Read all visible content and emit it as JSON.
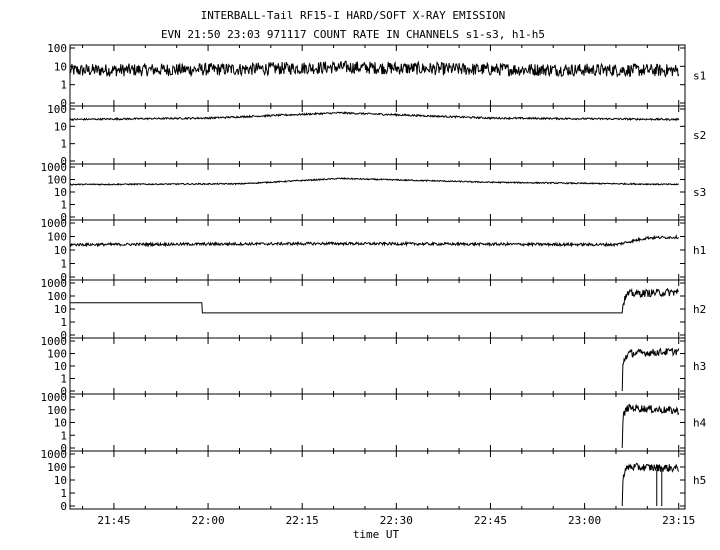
{
  "title_line1": "INTERBALL-Tail RF15-I HARD/SOFT X-RAY EMISSION",
  "title_line2": "EVN 21:50 23:03 971117  COUNT RATE IN CHANNELS s1-s3, h1-h5",
  "colors": {
    "background": "#ffffff",
    "foreground": "#000000"
  },
  "chart_data": {
    "type": "line",
    "xlabel": "time UT",
    "x_ticks": [
      "21:45",
      "22:00",
      "22:15",
      "22:30",
      "22:45",
      "23:00",
      "23:15"
    ],
    "x_tick_minutes": [
      1305,
      1320,
      1335,
      1350,
      1365,
      1380,
      1395
    ],
    "x_range_minutes": [
      1298,
      1396
    ],
    "y_scale": "log (with 0 at bottom)",
    "grid": false,
    "panels": [
      {
        "name": "s1",
        "y_ticks": [
          "100",
          "10",
          "1",
          "0"
        ],
        "ylim": [
          0,
          100
        ],
        "series": [
          {
            "x": [
              "21:38",
              "22:05",
              "22:21",
              "22:40",
              "23:15"
            ],
            "y": [
              6,
              7,
              9,
              7,
              6
            ],
            "noise": "high"
          }
        ]
      },
      {
        "name": "s2",
        "y_ticks": [
          "100",
          "10",
          "1",
          "0"
        ],
        "ylim": [
          0,
          100
        ],
        "series": [
          {
            "x": [
              "21:38",
              "22:00",
              "22:21",
              "22:45",
              "23:15"
            ],
            "y": [
              25,
              30,
              60,
              30,
              25
            ],
            "noise": "low"
          }
        ]
      },
      {
        "name": "s3",
        "y_ticks": [
          "1000",
          "100",
          "10",
          "1",
          "0"
        ],
        "ylim": [
          0,
          1000
        ],
        "series": [
          {
            "x": [
              "21:38",
              "22:05",
              "22:21",
              "22:45",
              "23:15"
            ],
            "y": [
              40,
              45,
              120,
              60,
              40
            ],
            "noise": "low"
          }
        ]
      },
      {
        "name": "h1",
        "y_ticks": [
          "1000",
          "100",
          "10",
          "1",
          "0"
        ],
        "ylim": [
          0,
          1000
        ],
        "series": [
          {
            "x": [
              "21:38",
              "22:20",
              "23:05",
              "23:07",
              "23:10",
              "23:15"
            ],
            "y": [
              25,
              30,
              25,
              40,
              80,
              90
            ],
            "noise": "med"
          }
        ]
      },
      {
        "name": "h2",
        "y_ticks": [
          "1000",
          "100",
          "10",
          "1",
          "0"
        ],
        "ylim": [
          0,
          1000
        ],
        "series": [
          {
            "x": [
              "21:38",
              "21:59",
              "21:59",
              "23:06",
              "23:06",
              "23:07",
              "23:15"
            ],
            "y": [
              30,
              30,
              5,
              5,
              0,
              150,
              200
            ],
            "noise": "step-burst"
          }
        ]
      },
      {
        "name": "h3",
        "y_ticks": [
          "1000",
          "100",
          "10",
          "1",
          "0"
        ],
        "ylim": [
          0,
          1000
        ],
        "series": [
          {
            "x": [
              "23:06",
              "23:07",
              "23:15"
            ],
            "y": [
              0,
              100,
              150
            ],
            "noise": "burst"
          }
        ]
      },
      {
        "name": "h4",
        "y_ticks": [
          "1000",
          "100",
          "10",
          "1",
          "0"
        ],
        "ylim": [
          0,
          1000
        ],
        "series": [
          {
            "x": [
              "23:06",
              "23:07",
              "23:15"
            ],
            "y": [
              0,
              150,
              80
            ],
            "noise": "burst"
          }
        ]
      },
      {
        "name": "h5",
        "y_ticks": [
          "1000",
          "100",
          "10",
          "1",
          "0"
        ],
        "ylim": [
          0,
          1000
        ],
        "series": [
          {
            "x": [
              "23:06",
              "23:07",
              "23:15"
            ],
            "y": [
              0,
              100,
              80
            ],
            "noise": "burst"
          }
        ]
      }
    ]
  }
}
